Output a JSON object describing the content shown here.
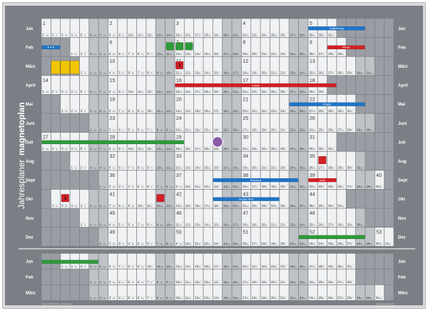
{
  "brand": {
    "name": "magnetoplan",
    "product": "Jahresplaner",
    "trademark": "®"
  },
  "months_top": [
    "Jan",
    "Feb",
    "März",
    "April",
    "Mai",
    "Juni",
    "Juli",
    "Aug",
    "Sept",
    "Okt",
    "Nov",
    "Dez"
  ],
  "months_bottom": [
    "Jan",
    "Feb",
    "März"
  ],
  "weekdays": [
    "Mo",
    "Di",
    "Mi",
    "Do",
    "Fr",
    "Sa",
    "So"
  ],
  "colors": {
    "frame": "#7b7f85",
    "cell_workday": "#f1f2f3",
    "cell_weekend": "#bfc2c6",
    "cell_holiday": "#cfd2d6",
    "magnet_yellow": "#f2c500",
    "magnet_red": "#d11f25",
    "magnet_green": "#2e9a3b",
    "magnet_blue": "#1f74c8",
    "magnet_purple": "#8a5aa6"
  },
  "magnets": {
    "strips": [
      {
        "row": 0,
        "start": 28,
        "end": 33,
        "color": "blue",
        "label": "Kalibrierung"
      },
      {
        "row": 1,
        "start": 0,
        "end": 1,
        "color": "blue",
        "label": "▼▼▼"
      },
      {
        "row": 1,
        "start": 30,
        "end": 33,
        "color": "red",
        "label": "Messe"
      },
      {
        "row": 3,
        "start": 14,
        "end": 30,
        "color": "red",
        "label": "Urlaub"
      },
      {
        "row": 4,
        "start": 26,
        "end": 33,
        "color": "blue",
        "label": "Projekt"
      },
      {
        "row": 6,
        "start": 0,
        "end": 14,
        "color": "green",
        "label": ""
      },
      {
        "row": 8,
        "start": 18,
        "end": 26,
        "color": "blue",
        "label": "Schulung"
      },
      {
        "row": 8,
        "start": 28,
        "end": 30,
        "color": "red",
        "label": "Audit"
      },
      {
        "row": 9,
        "start": 18,
        "end": 24,
        "color": "blue",
        "label": "Gruppe Nord"
      },
      {
        "row": 11,
        "start": 27,
        "end": 33,
        "color": "green",
        "label": ""
      },
      {
        "row": 12,
        "start": 0,
        "end": 5,
        "color": "green",
        "label": ""
      }
    ],
    "squares": [
      {
        "row": 1,
        "col": 13,
        "color": "green",
        "label": ""
      },
      {
        "row": 1,
        "col": 14,
        "color": "green",
        "label": ""
      },
      {
        "row": 1,
        "col": 15,
        "color": "green",
        "label": ""
      },
      {
        "row": 2,
        "col": 14,
        "color": "red",
        "label": "3"
      },
      {
        "row": 2,
        "col": 1,
        "color": "yellow",
        "label": ""
      },
      {
        "row": 2,
        "col": 2,
        "color": "yellow",
        "label": ""
      },
      {
        "row": 2,
        "col": 3,
        "color": "yellow",
        "label": ""
      },
      {
        "row": 9,
        "col": 2,
        "color": "red",
        "label": "3"
      },
      {
        "row": 9,
        "col": 12,
        "color": "red",
        "label": ""
      },
      {
        "row": 7,
        "col": 29,
        "color": "red",
        "label": ""
      }
    ],
    "dots": [
      {
        "row": 6,
        "col": 18,
        "color": "purple"
      }
    ]
  },
  "fineprint": {
    "left": "magnetoplan® GmbH · Jahresplaner",
    "right": "www.magnetoplan.de"
  }
}
